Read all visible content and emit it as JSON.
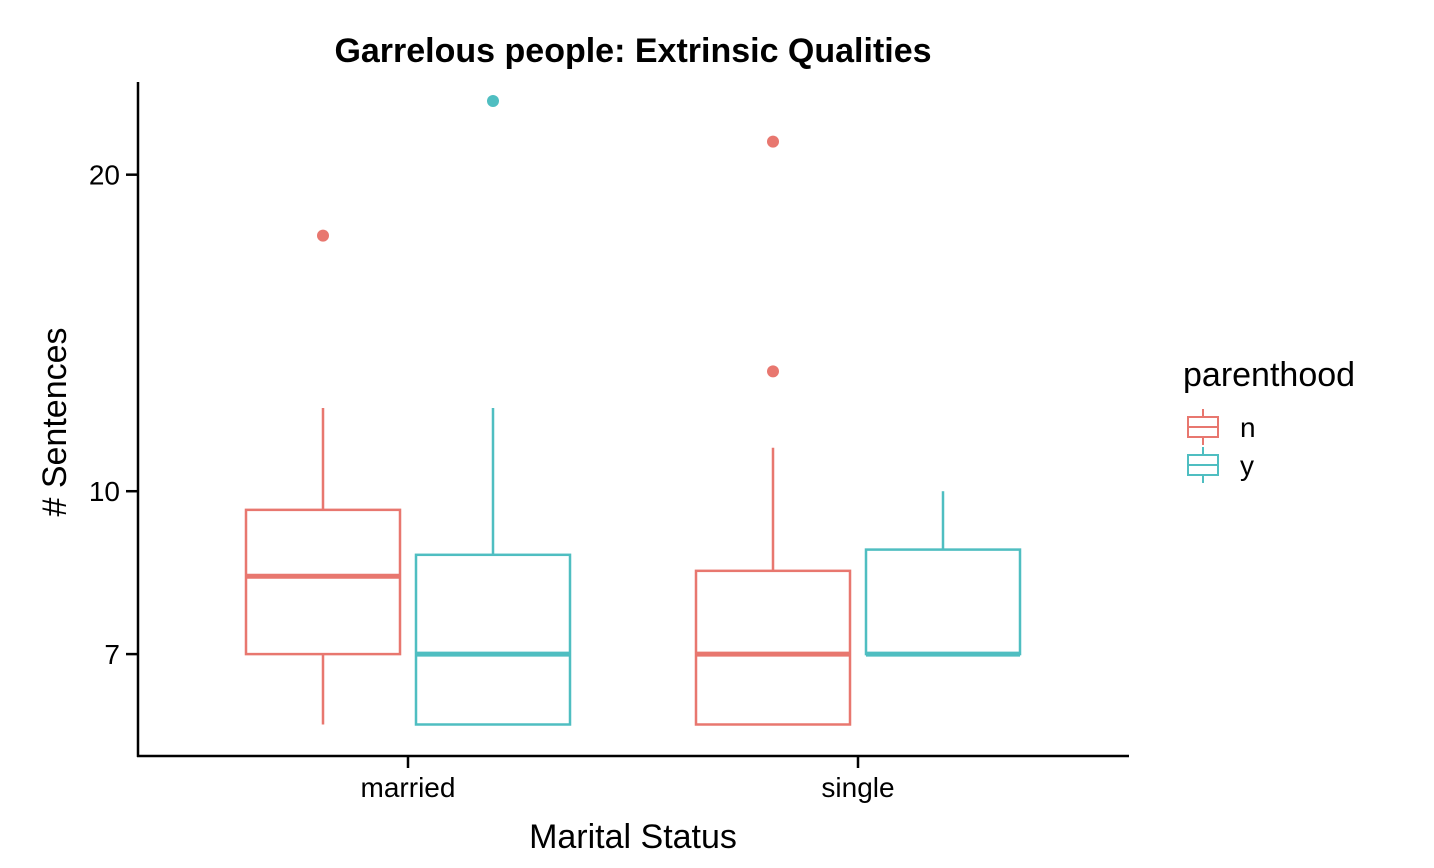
{
  "chart_data": {
    "type": "boxplot",
    "title": "Garrelous people: Extrinsic Qualities",
    "xlabel": "Marital Status",
    "ylabel": "# Sentences",
    "y_scale": "log",
    "ylim": [
      5.6,
      24.5
    ],
    "y_ticks": [
      7,
      10,
      20
    ],
    "categories": [
      "married",
      "single"
    ],
    "legend": {
      "title": "parenthood",
      "position": "right",
      "entries": [
        "n",
        "y"
      ]
    },
    "series": [
      {
        "name": "n",
        "color": "#E8776F",
        "boxes": [
          {
            "category": "married",
            "whisker_low": 6,
            "q1": 7,
            "median": 8.3,
            "q3": 9.6,
            "whisker_high": 12,
            "outliers": [
              17.5
            ]
          },
          {
            "category": "single",
            "whisker_low": 6,
            "q1": 6,
            "median": 7,
            "q3": 8.4,
            "whisker_high": 11,
            "outliers": [
              13,
              21.5
            ]
          }
        ]
      },
      {
        "name": "y",
        "color": "#4FBEC1",
        "boxes": [
          {
            "category": "married",
            "whisker_low": 6,
            "q1": 6,
            "median": 7,
            "q3": 8.7,
            "whisker_high": 12,
            "outliers": [
              23.5
            ]
          },
          {
            "category": "single",
            "whisker_low": 7,
            "q1": 7,
            "median": 7,
            "q3": 8.8,
            "whisker_high": 10,
            "outliers": []
          }
        ]
      }
    ]
  }
}
